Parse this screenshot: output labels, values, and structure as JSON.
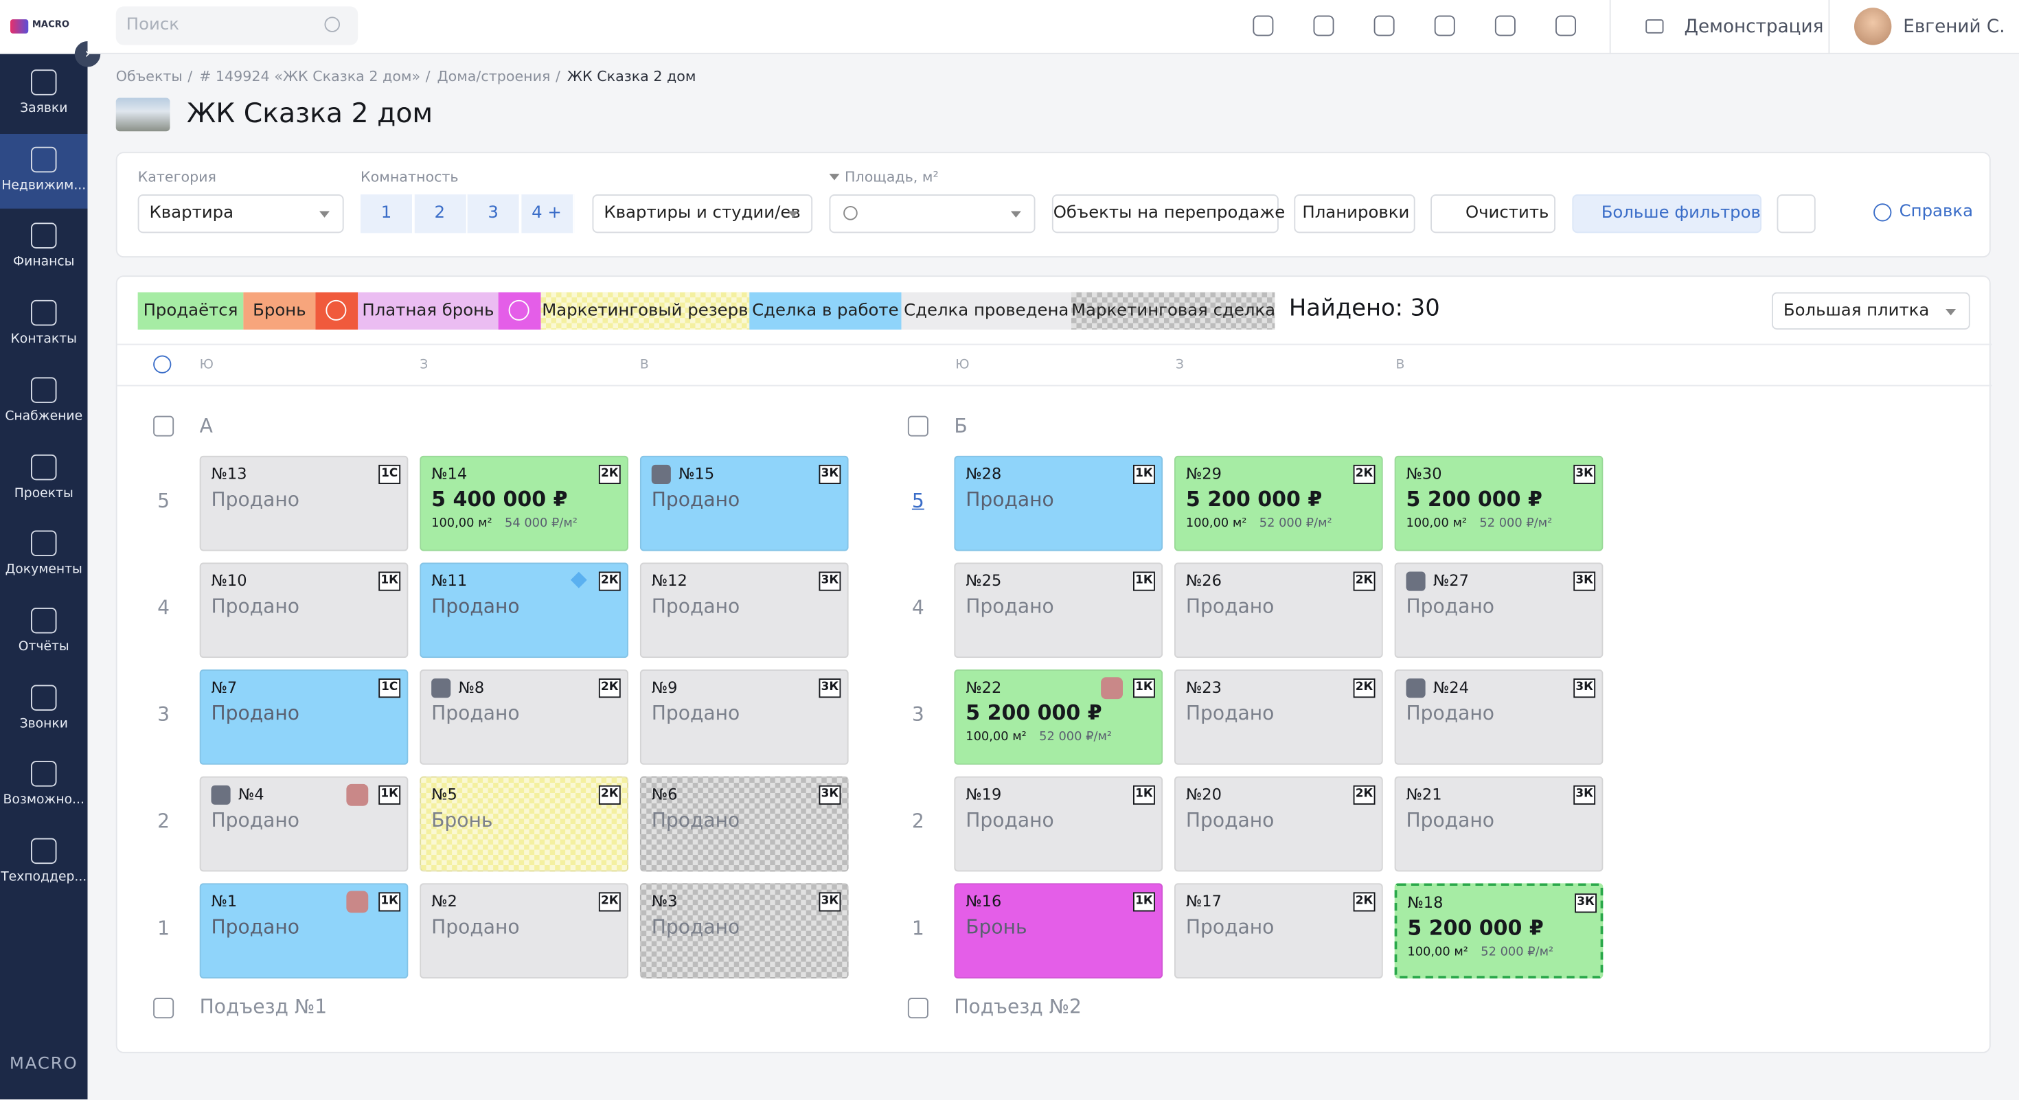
{
  "sidebar": {
    "logo": "MACRO",
    "items": [
      "Заявки",
      "Недвижим...",
      "Финансы",
      "Контакты",
      "Снабжение",
      "Проекты",
      "Документы",
      "Отчёты",
      "Звонки",
      "Возможно...",
      "Техподдер..."
    ],
    "active": 1,
    "footer": "MACRO"
  },
  "topbar": {
    "search": "Поиск",
    "company": "Демонстрация",
    "user": "Евгений С."
  },
  "breadcrumbs": [
    "Объекты",
    "# 149924 «ЖК Сказка 2 дом»",
    "Дома/строения",
    "ЖК Сказка 2 дом"
  ],
  "title": "ЖК Сказка 2 дом",
  "filters": {
    "category_label": "Категория",
    "category": "Квартира",
    "rooms_label": "Комнатность",
    "rooms": [
      "1",
      "2",
      "3",
      "4 +"
    ],
    "kind": "Квартиры и студии/ев",
    "area_label": "Площадь, м²",
    "buttons": [
      "Объекты на перепродаже",
      "Планировки",
      "Очистить",
      "Больше фильтров"
    ],
    "help": "Справка"
  },
  "legend": [
    {
      "name": "Продаётся",
      "color": "#a6eca4"
    },
    {
      "name": "Бронь",
      "color": "#f7a57c"
    },
    {
      "clock": true,
      "color": "#f05a3c"
    },
    {
      "name": "Платная бронь",
      "color": "#ebbdf2"
    },
    {
      "clock": true,
      "color": "#e45ee8"
    },
    {
      "name": "Маркетинговый резерв",
      "color": "#f4f0a0",
      "pattern": true
    },
    {
      "name": "Сделка в работе",
      "color": "#8fd4fa"
    },
    {
      "name": "Сделка проведена",
      "color": "#ececee"
    },
    {
      "name": "Маркетинговая сделка",
      "color": "#bcbcbc",
      "pattern": true
    }
  ],
  "found": "Найдено: 30",
  "view": "Большая плитка",
  "compass": [
    "Ю",
    "З",
    "В"
  ],
  "entrances": [
    {
      "letter": "А",
      "footer": "Подъезд №1",
      "floors": [
        {
          "floor": 5,
          "units": [
            {
              "no": "№13",
              "type": "1С",
              "status": "Продано",
              "color": "#e6e6e8"
            },
            {
              "no": "№14",
              "type": "2К",
              "price": "5 400 000 ₽",
              "area": "100,00 м²",
              "ppm": "54 000 ₽/м²",
              "color": "#a6eca4"
            },
            {
              "no": "№15",
              "type": "3К",
              "status": "Продано",
              "color": "#8fd4fa",
              "key": true
            }
          ]
        },
        {
          "floor": 4,
          "units": [
            {
              "no": "№10",
              "type": "1К",
              "status": "Продано",
              "color": "#e6e6e8"
            },
            {
              "no": "№11",
              "type": "2К",
              "status": "Продано",
              "color": "#8fd4fa",
              "diamond": true
            },
            {
              "no": "№12",
              "type": "3К",
              "status": "Продано",
              "color": "#e6e6e8"
            }
          ]
        },
        {
          "floor": 3,
          "units": [
            {
              "no": "№7",
              "type": "1С",
              "status": "Продано",
              "color": "#8fd4fa"
            },
            {
              "no": "№8",
              "type": "2К",
              "status": "Продано",
              "color": "#e6e6e8",
              "key": true
            },
            {
              "no": "№9",
              "type": "3К",
              "status": "Продано",
              "color": "#e6e6e8"
            }
          ]
        },
        {
          "floor": 2,
          "units": [
            {
              "no": "№4",
              "type": "1К",
              "status": "Продано",
              "color": "#e6e6e8",
              "key": true,
              "paint": true
            },
            {
              "no": "№5",
              "type": "2К",
              "status": "Бронь",
              "color": "#f4f0a0",
              "pattern": true
            },
            {
              "no": "№6",
              "type": "3К",
              "status": "Продано",
              "color": "#bcbcbc",
              "pattern": true
            }
          ]
        },
        {
          "floor": 1,
          "units": [
            {
              "no": "№1",
              "type": "1К",
              "status": "Продано",
              "color": "#8fd4fa",
              "paint": true
            },
            {
              "no": "№2",
              "type": "2К",
              "status": "Продано",
              "color": "#e6e6e8"
            },
            {
              "no": "№3",
              "type": "3К",
              "status": "Продано",
              "color": "#bcbcbc",
              "pattern": true
            }
          ]
        }
      ]
    },
    {
      "letter": "Б",
      "footer": "Подъезд №2",
      "floors": [
        {
          "floor": 5,
          "link": true,
          "units": [
            {
              "no": "№28",
              "type": "1К",
              "status": "Продано",
              "color": "#8fd4fa"
            },
            {
              "no": "№29",
              "type": "2К",
              "price": "5 200 000 ₽",
              "area": "100,00 м²",
              "ppm": "52 000 ₽/м²",
              "color": "#a6eca4"
            },
            {
              "no": "№30",
              "type": "3К",
              "price": "5 200 000 ₽",
              "area": "100,00 м²",
              "ppm": "52 000 ₽/м²",
              "color": "#a6eca4"
            }
          ]
        },
        {
          "floor": 4,
          "units": [
            {
              "no": "№25",
              "type": "1К",
              "status": "Продано",
              "color": "#e6e6e8"
            },
            {
              "no": "№26",
              "type": "2К",
              "status": "Продано",
              "color": "#e6e6e8"
            },
            {
              "no": "№27",
              "type": "3К",
              "status": "Продано",
              "color": "#e6e6e8",
              "key": true
            }
          ]
        },
        {
          "floor": 3,
          "units": [
            {
              "no": "№22",
              "type": "1К",
              "price": "5 200 000 ₽",
              "area": "100,00 м²",
              "ppm": "52 000 ₽/м²",
              "color": "#a6eca4",
              "paint": true
            },
            {
              "no": "№23",
              "type": "2К",
              "status": "Продано",
              "color": "#e6e6e8"
            },
            {
              "no": "№24",
              "type": "3К",
              "status": "Продано",
              "color": "#e6e6e8",
              "key": true
            }
          ]
        },
        {
          "floor": 2,
          "units": [
            {
              "no": "№19",
              "type": "1К",
              "status": "Продано",
              "color": "#e6e6e8"
            },
            {
              "no": "№20",
              "type": "2К",
              "status": "Продано",
              "color": "#e6e6e8"
            },
            {
              "no": "№21",
              "type": "3К",
              "status": "Продано",
              "color": "#e6e6e8"
            }
          ]
        },
        {
          "floor": 1,
          "units": [
            {
              "no": "№16",
              "type": "1К",
              "status": "Бронь",
              "color": "#e45ee8"
            },
            {
              "no": "№17",
              "type": "2К",
              "status": "Продано",
              "color": "#e6e6e8"
            },
            {
              "no": "№18",
              "type": "3К",
              "price": "5 200 000 ₽",
              "area": "100,00 м²",
              "ppm": "52 000 ₽/м²",
              "color": "#a6eca4",
              "dashed": true
            }
          ]
        }
      ]
    }
  ]
}
